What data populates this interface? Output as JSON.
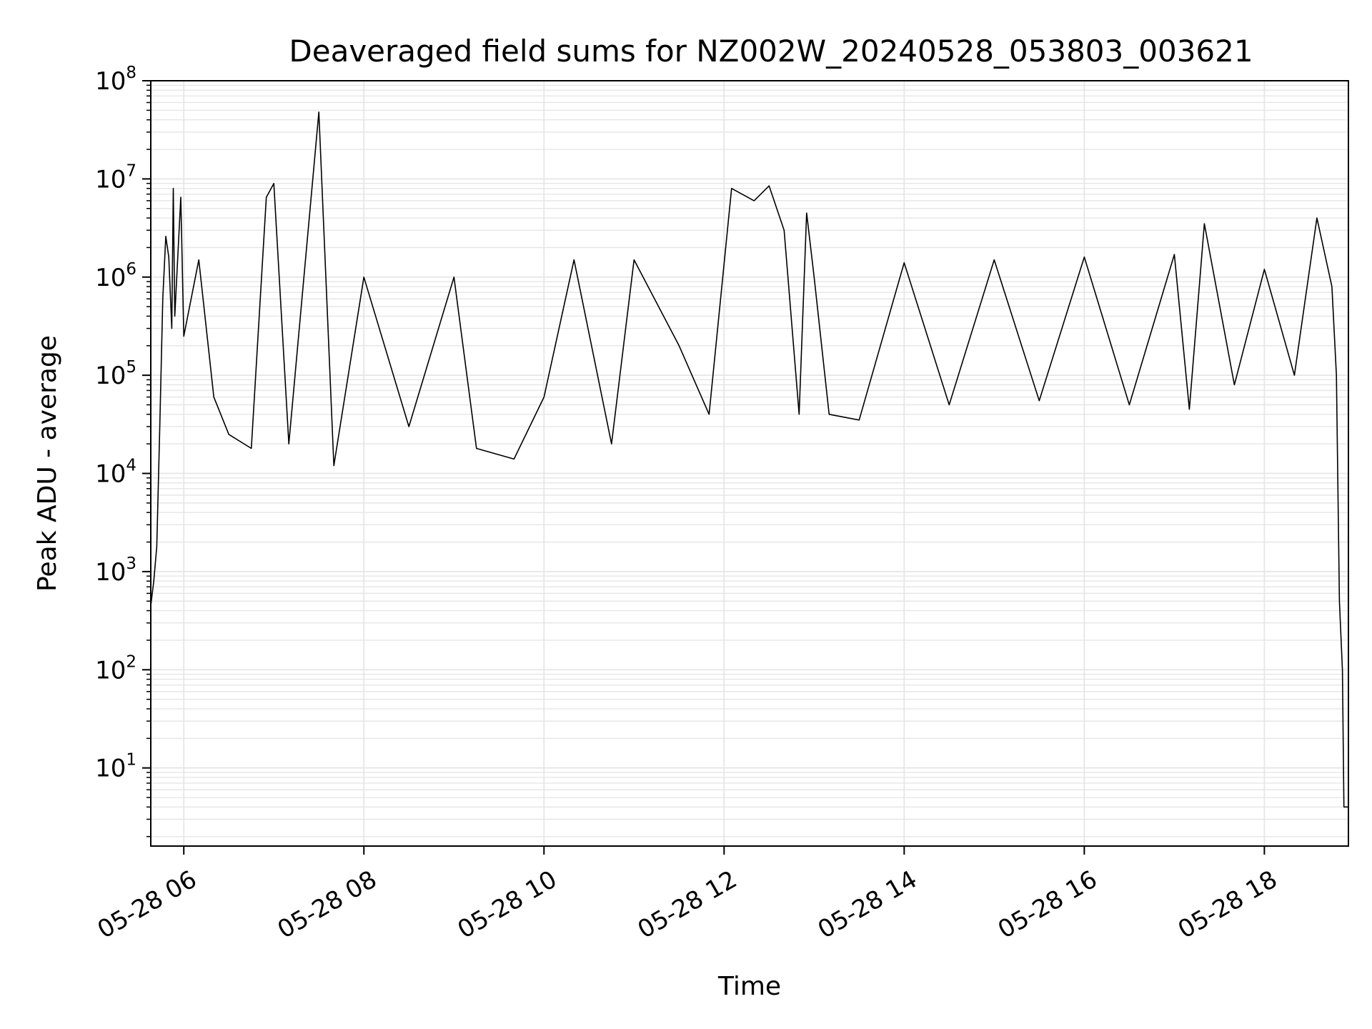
{
  "chart_data": {
    "type": "line",
    "title": "Deaveraged field sums for NZ002W_20240528_053803_003621",
    "xlabel": "Time",
    "ylabel": "Peak ADU - average",
    "yscale": "log",
    "ylim": [
      1.6,
      100000000
    ],
    "xlim": [
      "2024-05-28 05:38",
      "2024-05-28 18:56"
    ],
    "grid": true,
    "line_color": "#000000",
    "grid_color": "#e6e6e6",
    "x_ticks": [
      {
        "value": "2024-05-28 06:00",
        "label": "05-28 06"
      },
      {
        "value": "2024-05-28 08:00",
        "label": "05-28 08"
      },
      {
        "value": "2024-05-28 10:00",
        "label": "05-28 10"
      },
      {
        "value": "2024-05-28 12:00",
        "label": "05-28 12"
      },
      {
        "value": "2024-05-28 14:00",
        "label": "05-28 14"
      },
      {
        "value": "2024-05-28 16:00",
        "label": "05-28 16"
      },
      {
        "value": "2024-05-28 18:00",
        "label": "05-28 18"
      }
    ],
    "y_ticks": [
      {
        "value": 10,
        "base": "10",
        "exp": "1"
      },
      {
        "value": 100,
        "base": "10",
        "exp": "2"
      },
      {
        "value": 1000,
        "base": "10",
        "exp": "3"
      },
      {
        "value": 10000,
        "base": "10",
        "exp": "4"
      },
      {
        "value": 100000,
        "base": "10",
        "exp": "5"
      },
      {
        "value": 1000000,
        "base": "10",
        "exp": "6"
      },
      {
        "value": 10000000,
        "base": "10",
        "exp": "7"
      },
      {
        "value": 100000000,
        "base": "10",
        "exp": "8"
      }
    ],
    "series": [
      {
        "points": [
          [
            "2024-05-28 05:38",
            450
          ],
          [
            "2024-05-28 05:40",
            800
          ],
          [
            "2024-05-28 05:42",
            1800
          ],
          [
            "2024-05-28 05:44",
            30000
          ],
          [
            "2024-05-28 05:46",
            600000
          ],
          [
            "2024-05-28 05:48",
            2600000
          ],
          [
            "2024-05-28 05:50",
            1600000
          ],
          [
            "2024-05-28 05:52",
            300000
          ],
          [
            "2024-05-28 05:53",
            8000000
          ],
          [
            "2024-05-28 05:54",
            400000
          ],
          [
            "2024-05-28 05:58",
            6500000
          ],
          [
            "2024-05-28 06:00",
            250000
          ],
          [
            "2024-05-28 06:10",
            1500000
          ],
          [
            "2024-05-28 06:20",
            60000
          ],
          [
            "2024-05-28 06:30",
            25000
          ],
          [
            "2024-05-28 06:45",
            18000
          ],
          [
            "2024-05-28 06:55",
            6500000
          ],
          [
            "2024-05-28 07:00",
            9000000
          ],
          [
            "2024-05-28 07:10",
            20000
          ],
          [
            "2024-05-28 07:30",
            48000000
          ],
          [
            "2024-05-28 07:40",
            12000
          ],
          [
            "2024-05-28 08:00",
            1000000
          ],
          [
            "2024-05-28 08:30",
            30000
          ],
          [
            "2024-05-28 09:00",
            1000000
          ],
          [
            "2024-05-28 09:15",
            18000
          ],
          [
            "2024-05-28 09:40",
            14000
          ],
          [
            "2024-05-28 10:00",
            60000
          ],
          [
            "2024-05-28 10:20",
            1500000
          ],
          [
            "2024-05-28 10:45",
            20000
          ],
          [
            "2024-05-28 11:00",
            1500000
          ],
          [
            "2024-05-28 11:30",
            200000
          ],
          [
            "2024-05-28 11:50",
            40000
          ],
          [
            "2024-05-28 12:05",
            8000000
          ],
          [
            "2024-05-28 12:20",
            6000000
          ],
          [
            "2024-05-28 12:30",
            8500000
          ],
          [
            "2024-05-28 12:40",
            3000000
          ],
          [
            "2024-05-28 12:50",
            40000
          ],
          [
            "2024-05-28 12:55",
            4500000
          ],
          [
            "2024-05-28 13:00",
            1000000
          ],
          [
            "2024-05-28 13:10",
            40000
          ],
          [
            "2024-05-28 13:30",
            35000
          ],
          [
            "2024-05-28 14:00",
            1400000
          ],
          [
            "2024-05-28 14:30",
            50000
          ],
          [
            "2024-05-28 15:00",
            1500000
          ],
          [
            "2024-05-28 15:30",
            55000
          ],
          [
            "2024-05-28 16:00",
            1600000
          ],
          [
            "2024-05-28 16:30",
            50000
          ],
          [
            "2024-05-28 17:00",
            1700000
          ],
          [
            "2024-05-28 17:10",
            45000
          ],
          [
            "2024-05-28 17:20",
            3500000
          ],
          [
            "2024-05-28 17:40",
            80000
          ],
          [
            "2024-05-28 18:00",
            1200000
          ],
          [
            "2024-05-28 18:20",
            100000
          ],
          [
            "2024-05-28 18:35",
            4000000
          ],
          [
            "2024-05-28 18:45",
            800000
          ],
          [
            "2024-05-28 18:48",
            100000
          ],
          [
            "2024-05-28 18:50",
            500
          ],
          [
            "2024-05-28 18:52",
            100
          ],
          [
            "2024-05-28 18:53",
            4
          ],
          [
            "2024-05-28 18:56",
            4
          ]
        ]
      }
    ]
  }
}
